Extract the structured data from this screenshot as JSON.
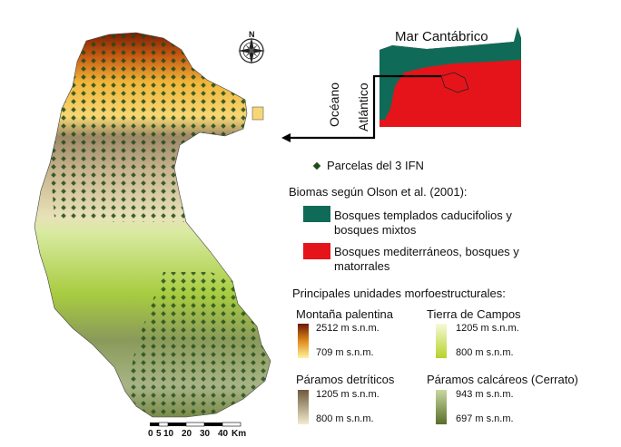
{
  "inset": {
    "sea_label": "Mar Cantábrico",
    "ocean_label_line1": "Océano",
    "ocean_label_line2": "Atlántico"
  },
  "legend": {
    "plots_label": "Parcelas del 3 IFN",
    "biomes_title": "Biomas según Olson et al. (2001):",
    "biome_temperate_line1": "Bosques templados caducifolios y",
    "biome_temperate_line2": "bosques mixtos",
    "biome_mediterranean_line1": "Bosques mediterráneos, bosques y",
    "biome_mediterranean_line2": "matorrales",
    "units_title": "Principales unidades morfoestructurales:",
    "units": [
      {
        "name": "Montaña palentina",
        "max": "2512 m s.n.m.",
        "min": "709 m s.n.m.",
        "color_top": "#6b1a05",
        "color_mid": "#e08a1a",
        "color_bottom": "#fff3a0"
      },
      {
        "name": "Tierra de Campos",
        "max": "1205 m s.n.m.",
        "min": "800 m s.n.m.",
        "color_top": "#f6fad8",
        "color_bottom": "#b6d22a"
      },
      {
        "name": "Páramos detríticos",
        "max": "1205 m s.n.m.",
        "min": "800 m s.n.m.",
        "color_top": "#6e5a3c",
        "color_bottom": "#f3ecd0"
      },
      {
        "name": "Páramos calcáreos (Cerrato)",
        "max": "943 m s.n.m.",
        "min": "697 m s.n.m.",
        "color_top": "#c8d8a0",
        "color_bottom": "#5a6e2a"
      }
    ],
    "colors": {
      "temperate": "#0f6b58",
      "mediterranean": "#e5141a",
      "plot_marker": "#1f4a1a"
    }
  },
  "scale_bar": {
    "ticks": [
      "0",
      "5",
      "10",
      "20",
      "30",
      "40"
    ],
    "unit": "Km"
  },
  "compass": {
    "north_label": "N"
  }
}
